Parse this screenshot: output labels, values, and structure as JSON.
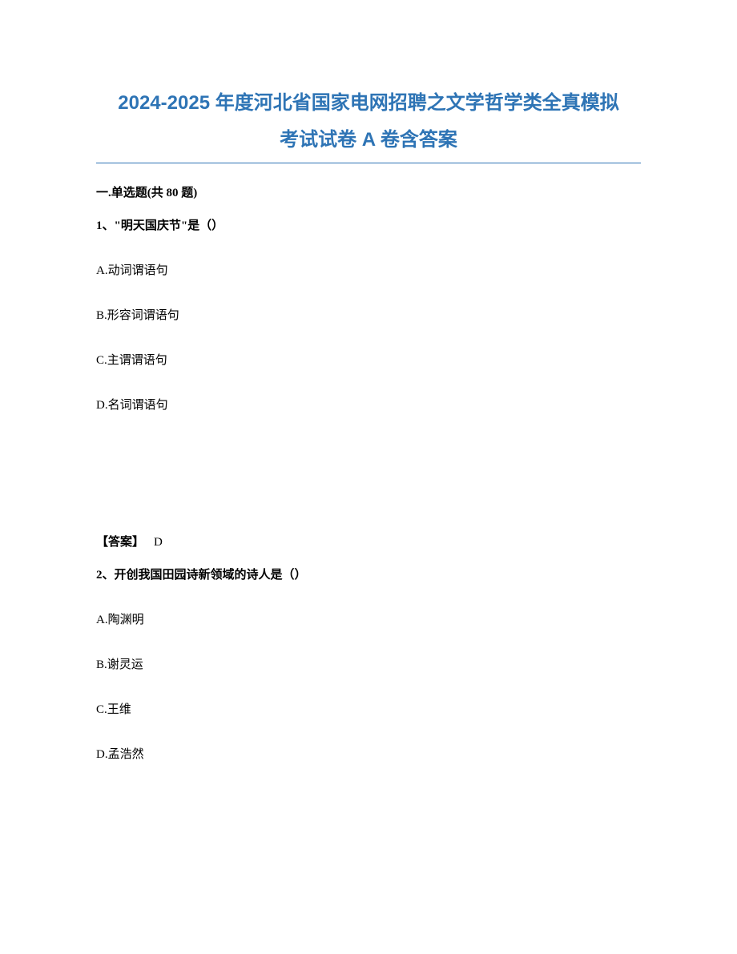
{
  "document": {
    "title_line1": "2024-2025 年度河北省国家电网招聘之文学哲学类全真模拟",
    "title_line2": "考试试卷 A 卷含答案",
    "title_color": "#2e74b5",
    "divider_color": "#2e74b5",
    "background_color": "#ffffff",
    "text_color": "#000000",
    "section_header": "一.单选题(共 80 题)",
    "questions": [
      {
        "number": "1、",
        "stem": "\"明天国庆节\"是（）",
        "options": [
          {
            "label": "A.",
            "text": "动词谓语句"
          },
          {
            "label": "B.",
            "text": "形容词谓语句"
          },
          {
            "label": "C.",
            "text": "主谓谓语句"
          },
          {
            "label": "D.",
            "text": "名词谓语句"
          }
        ],
        "answer_label": "【答案】",
        "answer_value": "D"
      },
      {
        "number": "2、",
        "stem": "开创我国田园诗新领域的诗人是（）",
        "options": [
          {
            "label": "A.",
            "text": "陶渊明"
          },
          {
            "label": "B.",
            "text": "谢灵运"
          },
          {
            "label": "C.",
            "text": "王维"
          },
          {
            "label": "D.",
            "text": "孟浩然"
          }
        ]
      }
    ]
  },
  "typography": {
    "title_fontsize": 24,
    "body_fontsize": 15,
    "title_font": "Microsoft YaHei",
    "body_font": "SimSun"
  }
}
